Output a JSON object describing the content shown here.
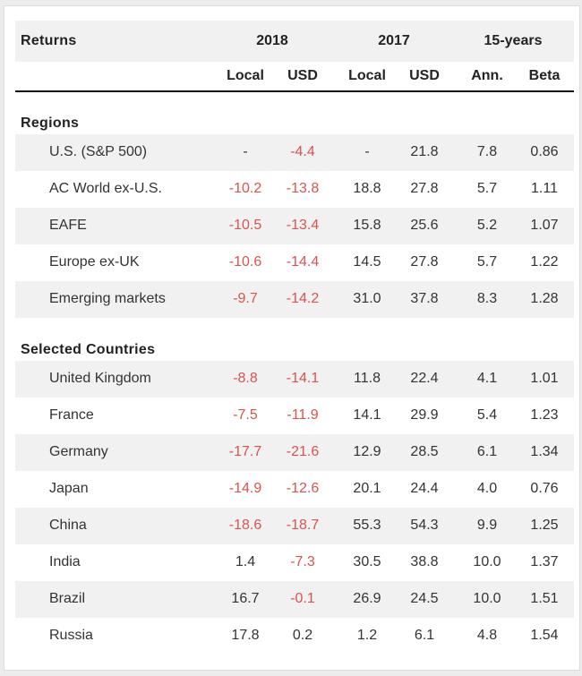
{
  "header": {
    "title": "Returns",
    "groups": [
      "2018",
      "2017",
      "15-years"
    ],
    "columns": [
      "Local",
      "USD",
      "Local",
      "USD",
      "Ann.",
      "Beta"
    ]
  },
  "colors": {
    "negative": "#d9534f",
    "shade": "#f1f1f1"
  },
  "sections": [
    {
      "title": "Regions",
      "rows": [
        {
          "name": "U.S. (S&P 500)",
          "values": [
            "-",
            "-4.4",
            "-",
            "21.8",
            "7.8",
            "0.86"
          ],
          "neg": [
            false,
            true,
            false,
            false,
            false,
            false
          ]
        },
        {
          "name": "AC World ex-U.S.",
          "values": [
            "-10.2",
            "-13.8",
            "18.8",
            "27.8",
            "5.7",
            "1.11"
          ],
          "neg": [
            true,
            true,
            false,
            false,
            false,
            false
          ]
        },
        {
          "name": "EAFE",
          "values": [
            "-10.5",
            "-13.4",
            "15.8",
            "25.6",
            "5.2",
            "1.07"
          ],
          "neg": [
            true,
            true,
            false,
            false,
            false,
            false
          ]
        },
        {
          "name": "Europe ex-UK",
          "values": [
            "-10.6",
            "-14.4",
            "14.5",
            "27.8",
            "5.7",
            "1.22"
          ],
          "neg": [
            true,
            true,
            false,
            false,
            false,
            false
          ]
        },
        {
          "name": "Emerging markets",
          "values": [
            "-9.7",
            "-14.2",
            "31.0",
            "37.8",
            "8.3",
            "1.28"
          ],
          "neg": [
            true,
            true,
            false,
            false,
            false,
            false
          ]
        }
      ]
    },
    {
      "title": "Selected Countries",
      "rows": [
        {
          "name": "United Kingdom",
          "values": [
            "-8.8",
            "-14.1",
            "11.8",
            "22.4",
            "4.1",
            "1.01"
          ],
          "neg": [
            true,
            true,
            false,
            false,
            false,
            false
          ]
        },
        {
          "name": "France",
          "values": [
            "-7.5",
            "-11.9",
            "14.1",
            "29.9",
            "5.4",
            "1.23"
          ],
          "neg": [
            true,
            true,
            false,
            false,
            false,
            false
          ]
        },
        {
          "name": "Germany",
          "values": [
            "-17.7",
            "-21.6",
            "12.9",
            "28.5",
            "6.1",
            "1.34"
          ],
          "neg": [
            true,
            true,
            false,
            false,
            false,
            false
          ]
        },
        {
          "name": "Japan",
          "values": [
            "-14.9",
            "-12.6",
            "20.1",
            "24.4",
            "4.0",
            "0.76"
          ],
          "neg": [
            true,
            true,
            false,
            false,
            false,
            false
          ]
        },
        {
          "name": "China",
          "values": [
            "-18.6",
            "-18.7",
            "55.3",
            "54.3",
            "9.9",
            "1.25"
          ],
          "neg": [
            true,
            true,
            false,
            false,
            false,
            false
          ]
        },
        {
          "name": "India",
          "values": [
            "1.4",
            "-7.3",
            "30.5",
            "38.8",
            "10.0",
            "1.37"
          ],
          "neg": [
            false,
            true,
            false,
            false,
            false,
            false
          ]
        },
        {
          "name": "Brazil",
          "values": [
            "16.7",
            "-0.1",
            "26.9",
            "24.5",
            "10.0",
            "1.51"
          ],
          "neg": [
            false,
            true,
            false,
            false,
            false,
            false
          ]
        },
        {
          "name": "Russia",
          "values": [
            "17.8",
            "0.2",
            "1.2",
            "6.1",
            "4.8",
            "1.54"
          ],
          "neg": [
            false,
            false,
            false,
            false,
            false,
            false
          ]
        }
      ]
    }
  ]
}
